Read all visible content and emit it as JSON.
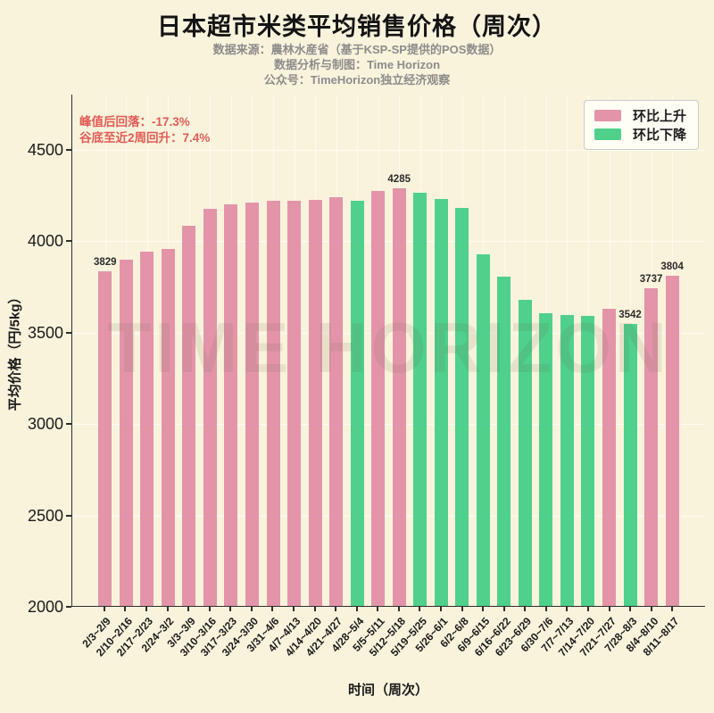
{
  "title": "日本超市米类平均销售价格（周次）",
  "subtitle_lines": [
    "数据来源：農林水産省（基于KSP-SP提供的POS数据）",
    "数据分析与制图：Time Horizon",
    "公众号：TimeHorizon独立经济观察"
  ],
  "annotation": {
    "line1": "峰值后回落：-17.3%",
    "line2": "谷底至近2周回升：7.4%",
    "color": "#e05c55"
  },
  "legend": {
    "items": [
      {
        "label": "环比上升",
        "color": "#e394a9"
      },
      {
        "label": "环比下降",
        "color": "#4fd08b"
      }
    ]
  },
  "watermark": "TIME HORIZON",
  "colors": {
    "background": "#faf3dc",
    "up": "#e394a9",
    "down": "#4fd08b",
    "axis": "#2e2e2e",
    "subtitle": "#8c8c8c"
  },
  "chart_data": {
    "type": "bar",
    "title": "日本超市米类平均销售价格（周次）",
    "xlabel": "时间（周次）",
    "ylabel": "平均价格（円/5kg）",
    "ylim": [
      2000,
      4800
    ],
    "yticks": [
      2000,
      2500,
      3000,
      3500,
      4000,
      4500
    ],
    "grid": true,
    "legend_position": "upper right",
    "categories": [
      "2/3~2/9",
      "2/10~2/16",
      "2/17~2/23",
      "2/24~3/2",
      "3/3~3/9",
      "3/10~3/16",
      "3/17~3/23",
      "3/24~3/30",
      "3/31~4/6",
      "4/7~4/13",
      "4/14~4/20",
      "4/21~4/27",
      "4/28~5/4",
      "5/5~5/11",
      "5/12~5/18",
      "5/19~5/25",
      "5/26~6/1",
      "6/2~6/8",
      "6/9~6/15",
      "6/16~6/22",
      "6/23~6/29",
      "6/30~7/6",
      "7/7~7/13",
      "7/14~7/20",
      "7/21~7/27",
      "7/28~8/3",
      "8/4~8/10",
      "8/11~8/17"
    ],
    "values": [
      3829,
      3892,
      3939,
      3952,
      4077,
      4172,
      4197,
      4206,
      4214,
      4217,
      4220,
      4233,
      4214,
      4268,
      4285,
      4260,
      4223,
      4176,
      3920,
      3801,
      3672,
      3602,
      3589,
      3585,
      3625,
      3542,
      3737,
      3804
    ],
    "directions": [
      "up",
      "up",
      "up",
      "up",
      "up",
      "up",
      "up",
      "up",
      "up",
      "up",
      "up",
      "up",
      "down",
      "up",
      "up",
      "down",
      "down",
      "down",
      "down",
      "down",
      "down",
      "down",
      "down",
      "down",
      "up",
      "down",
      "up",
      "up"
    ],
    "data_labels": [
      {
        "index": 0,
        "text": "3829"
      },
      {
        "index": 14,
        "text": "4285"
      },
      {
        "index": 25,
        "text": "3542"
      },
      {
        "index": 26,
        "text": "3737"
      },
      {
        "index": 27,
        "text": "3804"
      }
    ]
  }
}
